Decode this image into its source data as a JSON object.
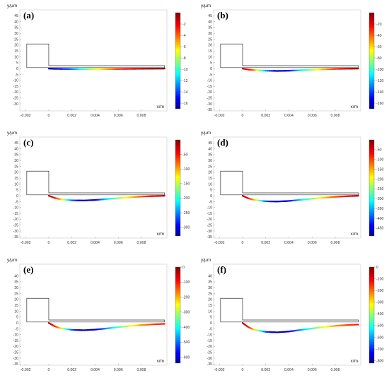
{
  "chart_data": [
    {
      "type": "line",
      "panel_label": "(a)",
      "xlabel": "x/m",
      "ylabel": "y/μm",
      "xlim": [
        -0.0025,
        0.0102
      ],
      "ylim": [
        -36,
        50
      ],
      "x_ticks": [
        "-0.002",
        "0",
        "0.002",
        "0.004",
        "0.006",
        "0.008"
      ],
      "y_ticks": [
        "45",
        "40",
        "35",
        "30",
        "25",
        "20",
        "15",
        "10",
        "5",
        "0",
        "-5",
        "-10",
        "-15",
        "-20",
        "-25",
        "-30"
      ],
      "colorbar_ticks": [
        "-2",
        "-4",
        "-6",
        "-8",
        "-10",
        "-12",
        "-14",
        "-16"
      ],
      "colorbar_range": [
        -17,
        0
      ],
      "deflection": {
        "x": [
          0,
          0.0005,
          0.001,
          0.002,
          0.003,
          0.004,
          0.005,
          0.006,
          0.007,
          0.008,
          0.009,
          0.01
        ],
        "y": [
          0,
          -0.2,
          -0.3,
          -0.4,
          -0.5,
          -0.5,
          -0.45,
          -0.35,
          -0.25,
          -0.15,
          -0.05,
          0
        ]
      },
      "color_values": [
        -16,
        -16,
        -15,
        -13,
        -10,
        -7,
        -5,
        -3,
        -2,
        -1,
        -0.5,
        0
      ]
    },
    {
      "type": "line",
      "panel_label": "(b)",
      "xlabel": "x/m",
      "ylabel": "y/μm",
      "xlim": [
        -0.0025,
        0.0102
      ],
      "ylim": [
        -36,
        50
      ],
      "x_ticks": [
        "-0.002",
        "0",
        "0.002",
        "0.004",
        "0.006",
        "0.008"
      ],
      "y_ticks": [
        "45",
        "40",
        "35",
        "30",
        "25",
        "20",
        "15",
        "10",
        "5",
        "0",
        "-5",
        "-10",
        "-15",
        "-20",
        "-25",
        "-30",
        "-35"
      ],
      "colorbar_ticks": [
        "-20",
        "-40",
        "-60",
        "-80",
        "-100",
        "-120",
        "-140",
        "-160"
      ],
      "colorbar_range": [
        -170,
        0
      ],
      "deflection": {
        "x": [
          0,
          0.0005,
          0.001,
          0.002,
          0.003,
          0.004,
          0.005,
          0.006,
          0.007,
          0.008,
          0.009,
          0.01
        ],
        "y": [
          0,
          -0.8,
          -1.3,
          -1.8,
          -2.0,
          -1.8,
          -1.4,
          -1.0,
          -0.6,
          -0.3,
          -0.1,
          0
        ]
      },
      "color_values": [
        -10,
        -20,
        -40,
        -120,
        -160,
        -150,
        -110,
        -80,
        -50,
        -30,
        -15,
        -5
      ]
    },
    {
      "type": "line",
      "panel_label": "(c)",
      "xlabel": "x/m",
      "ylabel": "y/μm",
      "xlim": [
        -0.0025,
        0.0102
      ],
      "ylim": [
        -36,
        50
      ],
      "x_ticks": [
        "-0.002",
        "0",
        "0.002",
        "0.004",
        "0.006",
        "0.008"
      ],
      "y_ticks": [
        "45",
        "40",
        "35",
        "30",
        "25",
        "20",
        "15",
        "10",
        "5",
        "0",
        "-5",
        "-10",
        "-15",
        "-20",
        "-25",
        "-30",
        "-35"
      ],
      "colorbar_ticks": [
        "-50",
        "-100",
        "-150",
        "-200",
        "-250",
        "-300"
      ],
      "colorbar_range": [
        -330,
        0
      ],
      "deflection": {
        "x": [
          0,
          0.0005,
          0.001,
          0.002,
          0.003,
          0.004,
          0.005,
          0.006,
          0.007,
          0.008,
          0.009,
          0.01
        ],
        "y": [
          0,
          -1.8,
          -3.0,
          -3.9,
          -4.0,
          -3.6,
          -2.8,
          -2.0,
          -1.3,
          -0.7,
          -0.3,
          0
        ]
      },
      "color_values": [
        -10,
        -40,
        -90,
        -250,
        -320,
        -300,
        -220,
        -160,
        -110,
        -70,
        -40,
        -20
      ]
    },
    {
      "type": "line",
      "panel_label": "(d)",
      "xlabel": "x/m",
      "ylabel": "y/μm",
      "xlim": [
        -0.0025,
        0.0102
      ],
      "ylim": [
        -36,
        50
      ],
      "x_ticks": [
        "-0.002",
        "0",
        "0.002",
        "0.004",
        "0.006",
        "0.008"
      ],
      "y_ticks": [
        "45",
        "40",
        "35",
        "30",
        "25",
        "20",
        "15",
        "10",
        "5",
        "0",
        "-5",
        "-10",
        "-15",
        "-20",
        "-25",
        "-30",
        "-35"
      ],
      "colorbar_ticks": [
        "-50",
        "-100",
        "-150",
        "-200",
        "-250",
        "-300",
        "-350",
        "-400",
        "-450"
      ],
      "colorbar_range": [
        -490,
        0
      ],
      "deflection": {
        "x": [
          0,
          0.0005,
          0.001,
          0.002,
          0.003,
          0.004,
          0.005,
          0.006,
          0.007,
          0.008,
          0.009,
          0.01
        ],
        "y": [
          0,
          -2.2,
          -3.5,
          -4.7,
          -4.9,
          -4.4,
          -3.5,
          -2.5,
          -1.6,
          -0.9,
          -0.4,
          0
        ]
      },
      "color_values": [
        -10,
        -60,
        -140,
        -380,
        -470,
        -440,
        -330,
        -240,
        -160,
        -100,
        -60,
        -30
      ]
    },
    {
      "type": "line",
      "panel_label": "(e)",
      "xlabel": "x/m",
      "ylabel": "y/μm",
      "xlim": [
        -0.0025,
        0.0102
      ],
      "ylim": [
        -36,
        50
      ],
      "x_ticks": [
        "-0.002",
        "0",
        "0.002",
        "0.004",
        "0.006",
        "0.008"
      ],
      "y_ticks": [
        "40",
        "35",
        "30",
        "25",
        "20",
        "15",
        "10",
        "5",
        "0",
        "-5",
        "-10",
        "-15",
        "-20",
        "-25",
        "-30",
        "-35"
      ],
      "colorbar_ticks": [
        "0",
        "-100",
        "-200",
        "-300",
        "-400",
        "-500",
        "-600"
      ],
      "colorbar_range": [
        -640,
        0
      ],
      "deflection": {
        "x": [
          0,
          0.0005,
          0.001,
          0.002,
          0.003,
          0.004,
          0.005,
          0.006,
          0.007,
          0.008,
          0.009,
          0.01
        ],
        "y": [
          0,
          -2.8,
          -4.5,
          -5.9,
          -6.2,
          -5.7,
          -4.7,
          -3.6,
          -2.6,
          -1.8,
          -1.2,
          -0.8
        ]
      },
      "color_values": [
        -20,
        -80,
        -200,
        -500,
        -620,
        -590,
        -470,
        -360,
        -260,
        -180,
        -120,
        -90
      ]
    },
    {
      "type": "line",
      "panel_label": "(f)",
      "xlabel": "x/m",
      "ylabel": "y/μm",
      "xlim": [
        -0.0025,
        0.0102
      ],
      "ylim": [
        -36,
        50
      ],
      "x_ticks": [
        "-0.002",
        "0",
        "0.002",
        "0.004",
        "0.006",
        "0.008"
      ],
      "y_ticks": [
        "40",
        "35",
        "30",
        "25",
        "20",
        "15",
        "10",
        "5",
        "0",
        "-5",
        "-10",
        "-15",
        "-20",
        "-25",
        "-30",
        "-35"
      ],
      "colorbar_ticks": [
        "0",
        "-100",
        "-200",
        "-300",
        "-400",
        "-500",
        "-600",
        "-700",
        "-800"
      ],
      "colorbar_range": [
        -820,
        0
      ],
      "deflection": {
        "x": [
          0,
          0.0005,
          0.001,
          0.002,
          0.003,
          0.004,
          0.005,
          0.006,
          0.007,
          0.008,
          0.009,
          0.01
        ],
        "y": [
          0,
          -3.6,
          -5.8,
          -7.6,
          -8.0,
          -7.3,
          -6.0,
          -4.7,
          -3.5,
          -2.5,
          -1.8,
          -1.4
        ]
      },
      "color_values": [
        -20,
        -100,
        -260,
        -650,
        -800,
        -760,
        -600,
        -460,
        -330,
        -230,
        -160,
        -120
      ]
    }
  ]
}
